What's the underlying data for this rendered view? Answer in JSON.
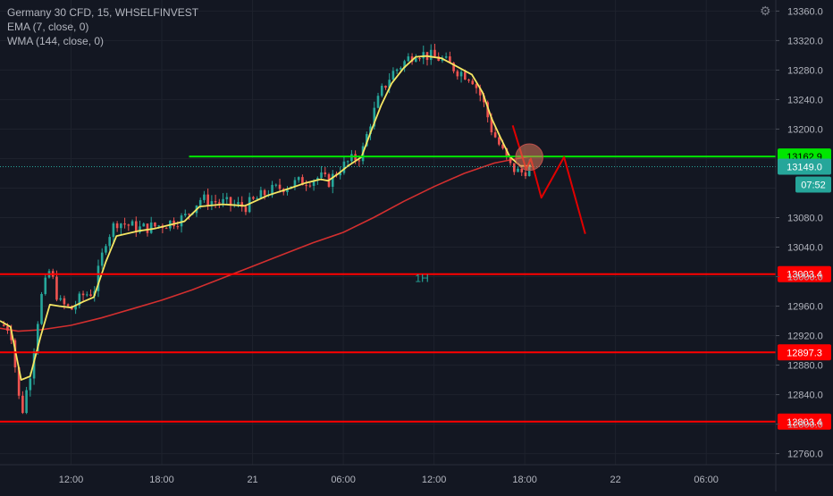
{
  "legend": {
    "title": "Germany 30 CFD, 15, WHSELFINVEST",
    "ema": "EMA (7, close, 0)",
    "wma": "WMA (144, close, 0)"
  },
  "colors": {
    "background": "#131722",
    "grid": "#1e222d",
    "axis_text": "#b2b5be",
    "candle_up": "#26a69a",
    "candle_down": "#ef5350",
    "ema": "#f5e663",
    "wma": "#d32f2f",
    "green_line": "#00e600",
    "red_line": "#ff0000",
    "projection": "#e00000"
  },
  "chart_data": {
    "type": "candlestick",
    "title": "Germany 30 CFD, 15, WHSELFINVEST",
    "timeframe": "15",
    "y_range": [
      12745,
      13375
    ],
    "y_ticks": [
      12760.0,
      12800.0,
      12840.0,
      12880.0,
      12920.0,
      12960.0,
      13000.0,
      13040.0,
      13080.0,
      13120.0,
      13160.0,
      13200.0,
      13240.0,
      13280.0,
      13320.0,
      13360.0
    ],
    "y_tick_labels": [
      "12760.0",
      "12800.0",
      "12840.0",
      "12880.0",
      "12920.0",
      "12960.0",
      "13000.0",
      "13040.0",
      "13080.0",
      "",
      "",
      "13200.0",
      "13240.0",
      "13280.0",
      "13320.0",
      "13360.0"
    ],
    "x_ticks": [
      {
        "label": "12:00",
        "hours": 12
      },
      {
        "label": "18:00",
        "hours": 18
      },
      {
        "label": "21",
        "hours": 24
      },
      {
        "label": "06:00",
        "hours": 30
      },
      {
        "label": "12:00",
        "hours": 36
      },
      {
        "label": "18:00",
        "hours": 42
      },
      {
        "label": "22",
        "hours": 48
      },
      {
        "label": "06:00",
        "hours": 54
      }
    ],
    "x_range_hours": [
      7.3,
      58.6
    ],
    "price_path": [
      [
        7.3,
        12935
      ],
      [
        8.0,
        12930
      ],
      [
        8.7,
        12810
      ],
      [
        9.3,
        12870
      ],
      [
        10.0,
        12970
      ],
      [
        10.6,
        13010
      ],
      [
        11.2,
        12965
      ],
      [
        12.0,
        12955
      ],
      [
        12.8,
        12975
      ],
      [
        13.5,
        12980
      ],
      [
        14.3,
        13050
      ],
      [
        15.0,
        13075
      ],
      [
        16.5,
        13065
      ],
      [
        17.5,
        13068
      ],
      [
        18.3,
        13072
      ],
      [
        19.5,
        13080
      ],
      [
        20.5,
        13105
      ],
      [
        22.0,
        13100
      ],
      [
        23.5,
        13095
      ],
      [
        25.0,
        13115
      ],
      [
        26.5,
        13125
      ],
      [
        27.5,
        13130
      ],
      [
        28.5,
        13135
      ],
      [
        29.0,
        13128
      ],
      [
        29.7,
        13145
      ],
      [
        30.3,
        13155
      ],
      [
        31.2,
        13165
      ],
      [
        31.8,
        13210
      ],
      [
        32.5,
        13250
      ],
      [
        33.2,
        13275
      ],
      [
        34.0,
        13290
      ],
      [
        34.8,
        13305
      ],
      [
        35.5,
        13300
      ],
      [
        36.5,
        13295
      ],
      [
        37.5,
        13280
      ],
      [
        38.5,
        13270
      ],
      [
        39.2,
        13240
      ],
      [
        39.8,
        13200
      ],
      [
        40.4,
        13175
      ],
      [
        41.0,
        13150
      ],
      [
        41.7,
        13140
      ],
      [
        42.4,
        13150
      ]
    ],
    "ema_7": [
      [
        7.3,
        12940
      ],
      [
        8.0,
        12932
      ],
      [
        8.7,
        12860
      ],
      [
        9.3,
        12865
      ],
      [
        10.0,
        12920
      ],
      [
        10.6,
        12962
      ],
      [
        11.2,
        12960
      ],
      [
        12.0,
        12958
      ],
      [
        12.8,
        12966
      ],
      [
        13.5,
        12972
      ],
      [
        14.3,
        13020
      ],
      [
        15.0,
        13055
      ],
      [
        16.5,
        13062
      ],
      [
        17.5,
        13065
      ],
      [
        18.3,
        13069
      ],
      [
        19.5,
        13075
      ],
      [
        20.5,
        13095
      ],
      [
        22.0,
        13098
      ],
      [
        23.5,
        13096
      ],
      [
        25.0,
        13110
      ],
      [
        26.5,
        13120
      ],
      [
        27.5,
        13127
      ],
      [
        28.5,
        13132
      ],
      [
        29.0,
        13130
      ],
      [
        29.7,
        13140
      ],
      [
        30.3,
        13150
      ],
      [
        31.2,
        13162
      ],
      [
        31.8,
        13195
      ],
      [
        32.5,
        13232
      ],
      [
        33.2,
        13262
      ],
      [
        34.0,
        13283
      ],
      [
        34.8,
        13298
      ],
      [
        35.5,
        13299
      ],
      [
        36.5,
        13296
      ],
      [
        37.5,
        13285
      ],
      [
        38.5,
        13274
      ],
      [
        39.2,
        13250
      ],
      [
        39.8,
        13215
      ],
      [
        40.4,
        13188
      ],
      [
        41.0,
        13163
      ],
      [
        41.7,
        13150
      ],
      [
        42.4,
        13150
      ]
    ],
    "wma_144": [
      [
        7.3,
        12930
      ],
      [
        8.5,
        12926
      ],
      [
        10.0,
        12928
      ],
      [
        12.0,
        12934
      ],
      [
        14.0,
        12944
      ],
      [
        16.0,
        12956
      ],
      [
        18.0,
        12968
      ],
      [
        20.0,
        12982
      ],
      [
        22.0,
        12998
      ],
      [
        24.0,
        13014
      ],
      [
        26.0,
        13030
      ],
      [
        28.0,
        13046
      ],
      [
        30.0,
        13060
      ],
      [
        32.0,
        13080
      ],
      [
        34.0,
        13102
      ],
      [
        36.0,
        13122
      ],
      [
        38.0,
        13140
      ],
      [
        40.0,
        13154
      ],
      [
        41.5,
        13160
      ],
      [
        42.4,
        13163
      ]
    ],
    "horizontal_lines": [
      {
        "price": 13162.9,
        "label": "13162.9",
        "color": "#00e600",
        "x_start_hours": 19.8
      },
      {
        "price": 13003.4,
        "label": "13003.4",
        "color": "#ff0000",
        "x_start_hours": 7.3
      },
      {
        "price": 12897.3,
        "label": "12897.3",
        "color": "#ff0000",
        "x_start_hours": 7.3
      },
      {
        "price": 12803.4,
        "label": "12803.4",
        "color": "#ff0000",
        "x_start_hours": 7.3
      }
    ],
    "current_price": {
      "price": 13149.0,
      "label": "13149.0",
      "countdown": "07:52"
    },
    "projection_path": [
      [
        41.2,
        13205
      ],
      [
        42.1,
        13145
      ],
      [
        42.4,
        13160
      ],
      [
        43.1,
        13107
      ],
      [
        44.6,
        13162
      ],
      [
        46.0,
        13058
      ]
    ],
    "highlight_ellipse": {
      "x_hours": 42.3,
      "price": 13162,
      "x_radius_hours": 0.9,
      "price_radius": 18
    },
    "annotation": {
      "text": "1H",
      "x_hours": 35.2,
      "price": 12993
    }
  }
}
